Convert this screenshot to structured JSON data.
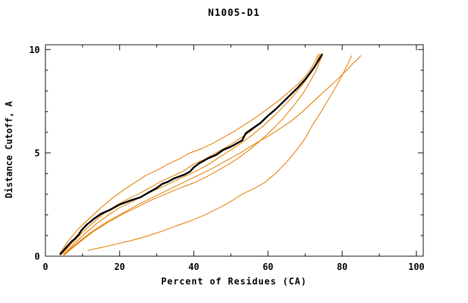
{
  "chart_data": {
    "type": "line",
    "title": "N1005-D1",
    "xlabel": "Percent of Residues (CA)",
    "ylabel": "Distance Cutoff, A",
    "xlim": [
      0,
      102
    ],
    "ylim": [
      0,
      10.23
    ],
    "grid": false,
    "legend": "none",
    "x_major_ticks": [
      0,
      20,
      40,
      60,
      80,
      100
    ],
    "x_minor_ticks": [
      10,
      30,
      50,
      70,
      90
    ],
    "y_major_ticks": [
      0,
      5,
      10
    ],
    "y_minor_ticks": [
      1,
      2,
      3,
      4,
      6,
      7,
      8,
      9
    ],
    "colors": {
      "accent": "#e8820a",
      "main": "#000000",
      "axis": "#000000"
    },
    "series": [
      {
        "name": "orange-1",
        "color": "#e8820a",
        "width": 1.2,
        "points": [
          [
            4,
            0.15
          ],
          [
            6,
            0.7
          ],
          [
            9,
            1.35
          ],
          [
            12,
            1.85
          ],
          [
            15,
            2.35
          ],
          [
            18,
            2.8
          ],
          [
            21,
            3.2
          ],
          [
            24,
            3.55
          ],
          [
            27,
            3.9
          ],
          [
            30,
            4.15
          ],
          [
            33,
            4.45
          ],
          [
            36,
            4.7
          ],
          [
            39,
            5.0
          ],
          [
            42,
            5.2
          ],
          [
            45,
            5.45
          ],
          [
            48,
            5.75
          ],
          [
            51,
            6.05
          ],
          [
            54,
            6.4
          ],
          [
            57,
            6.75
          ],
          [
            60,
            7.15
          ],
          [
            63,
            7.55
          ],
          [
            66,
            8.0
          ],
          [
            68.5,
            8.4
          ],
          [
            70.5,
            8.8
          ],
          [
            72,
            9.2
          ],
          [
            73,
            9.55
          ],
          [
            73.5,
            9.75
          ]
        ]
      },
      {
        "name": "orange-2",
        "color": "#e8820a",
        "width": 1.2,
        "points": [
          [
            4.5,
            0.1
          ],
          [
            7,
            0.6
          ],
          [
            10,
            1.15
          ],
          [
            13,
            1.65
          ],
          [
            16,
            2.1
          ],
          [
            19,
            2.45
          ],
          [
            22,
            2.75
          ],
          [
            25,
            3.0
          ],
          [
            28,
            3.3
          ],
          [
            31,
            3.6
          ],
          [
            34,
            3.85
          ],
          [
            37,
            4.1
          ],
          [
            40,
            4.45
          ],
          [
            43,
            4.7
          ],
          [
            46,
            5.0
          ],
          [
            49,
            5.3
          ],
          [
            52,
            5.65
          ],
          [
            55,
            6.0
          ],
          [
            58,
            6.45
          ],
          [
            61,
            6.95
          ],
          [
            64,
            7.45
          ],
          [
            67,
            7.95
          ],
          [
            69.5,
            8.45
          ],
          [
            71.5,
            8.9
          ],
          [
            73,
            9.35
          ],
          [
            74,
            9.8
          ]
        ]
      },
      {
        "name": "orange-3",
        "color": "#e8820a",
        "width": 1.2,
        "points": [
          [
            5,
            0.1
          ],
          [
            8,
            0.65
          ],
          [
            11,
            1.15
          ],
          [
            14,
            1.6
          ],
          [
            17,
            2.0
          ],
          [
            20,
            2.35
          ],
          [
            23,
            2.6
          ],
          [
            26,
            2.9
          ],
          [
            29,
            3.15
          ],
          [
            32,
            3.4
          ],
          [
            35,
            3.65
          ],
          [
            38,
            3.9
          ],
          [
            41,
            4.15
          ],
          [
            44,
            4.45
          ],
          [
            47,
            4.8
          ],
          [
            50,
            5.15
          ],
          [
            53,
            5.5
          ],
          [
            56,
            5.9
          ],
          [
            59,
            6.35
          ],
          [
            62,
            6.85
          ],
          [
            65,
            7.4
          ],
          [
            67.5,
            7.9
          ],
          [
            69.5,
            8.35
          ],
          [
            71.5,
            8.85
          ],
          [
            73,
            9.3
          ],
          [
            74.5,
            9.8
          ]
        ]
      },
      {
        "name": "orange-4",
        "color": "#e8820a",
        "width": 1.2,
        "points": [
          [
            5,
            0.05
          ],
          [
            9,
            0.65
          ],
          [
            13,
            1.2
          ],
          [
            17,
            1.65
          ],
          [
            21,
            2.05
          ],
          [
            25,
            2.4
          ],
          [
            29,
            2.75
          ],
          [
            33,
            3.05
          ],
          [
            37,
            3.35
          ],
          [
            40,
            3.55
          ],
          [
            43,
            3.8
          ],
          [
            46,
            4.1
          ],
          [
            49,
            4.4
          ],
          [
            52,
            4.75
          ],
          [
            55,
            5.15
          ],
          [
            58,
            5.6
          ],
          [
            61,
            6.1
          ],
          [
            64,
            6.65
          ],
          [
            67,
            7.3
          ],
          [
            69.5,
            7.9
          ],
          [
            71.5,
            8.5
          ],
          [
            73,
            9.0
          ],
          [
            74,
            9.45
          ],
          [
            74.8,
            9.8
          ]
        ]
      },
      {
        "name": "orange-5",
        "color": "#e8820a",
        "width": 1.2,
        "points": [
          [
            5,
            0.1
          ],
          [
            9,
            0.7
          ],
          [
            13,
            1.25
          ],
          [
            17,
            1.7
          ],
          [
            21,
            2.1
          ],
          [
            25,
            2.5
          ],
          [
            29,
            2.85
          ],
          [
            33,
            3.2
          ],
          [
            37,
            3.55
          ],
          [
            41,
            3.9
          ],
          [
            45,
            4.25
          ],
          [
            49,
            4.65
          ],
          [
            53,
            5.05
          ],
          [
            57,
            5.5
          ],
          [
            60,
            5.8
          ],
          [
            63,
            6.15
          ],
          [
            66,
            6.5
          ],
          [
            69,
            6.95
          ],
          [
            72,
            7.45
          ],
          [
            75,
            7.95
          ],
          [
            77.5,
            8.35
          ],
          [
            79.5,
            8.7
          ],
          [
            81.5,
            9.05
          ],
          [
            83,
            9.35
          ],
          [
            84.5,
            9.6
          ],
          [
            85,
            9.7
          ]
        ]
      },
      {
        "name": "orange-6-low",
        "color": "#e8820a",
        "width": 1.2,
        "points": [
          [
            11.5,
            0.28
          ],
          [
            15,
            0.42
          ],
          [
            19,
            0.58
          ],
          [
            23,
            0.75
          ],
          [
            27,
            0.95
          ],
          [
            31,
            1.18
          ],
          [
            35,
            1.45
          ],
          [
            39,
            1.7
          ],
          [
            43,
            2.0
          ],
          [
            47,
            2.35
          ],
          [
            50,
            2.65
          ],
          [
            53,
            3.0
          ],
          [
            56,
            3.25
          ],
          [
            59,
            3.55
          ],
          [
            62,
            4.0
          ],
          [
            65,
            4.55
          ],
          [
            68,
            5.2
          ],
          [
            70,
            5.7
          ],
          [
            72,
            6.35
          ],
          [
            74,
            6.9
          ],
          [
            76,
            7.5
          ],
          [
            78,
            8.1
          ],
          [
            80,
            8.75
          ],
          [
            81.5,
            9.3
          ],
          [
            82.5,
            9.7
          ]
        ]
      },
      {
        "name": "black-main",
        "color": "#000000",
        "width": 2.6,
        "points": [
          [
            4,
            0.1
          ],
          [
            5,
            0.3
          ],
          [
            6,
            0.5
          ],
          [
            7,
            0.7
          ],
          [
            8,
            0.85
          ],
          [
            9,
            1.05
          ],
          [
            9.7,
            1.25
          ],
          [
            11,
            1.5
          ],
          [
            13,
            1.8
          ],
          [
            15,
            2.05
          ],
          [
            17.5,
            2.25
          ],
          [
            20,
            2.5
          ],
          [
            23,
            2.7
          ],
          [
            25.6,
            2.85
          ],
          [
            28,
            3.1
          ],
          [
            30,
            3.3
          ],
          [
            31.5,
            3.5
          ],
          [
            33,
            3.6
          ],
          [
            34.5,
            3.75
          ],
          [
            36,
            3.85
          ],
          [
            37.5,
            3.95
          ],
          [
            39,
            4.1
          ],
          [
            40,
            4.3
          ],
          [
            41.5,
            4.5
          ],
          [
            42.5,
            4.6
          ],
          [
            44,
            4.75
          ],
          [
            46,
            4.9
          ],
          [
            48,
            5.15
          ],
          [
            50,
            5.3
          ],
          [
            52,
            5.5
          ],
          [
            53,
            5.6
          ],
          [
            54,
            5.95
          ],
          [
            56,
            6.2
          ],
          [
            58,
            6.45
          ],
          [
            60,
            6.8
          ],
          [
            62,
            7.1
          ],
          [
            64,
            7.45
          ],
          [
            66,
            7.8
          ],
          [
            68,
            8.15
          ],
          [
            70,
            8.55
          ],
          [
            71.5,
            8.9
          ],
          [
            72.5,
            9.15
          ],
          [
            73.5,
            9.45
          ],
          [
            74.5,
            9.75
          ]
        ]
      }
    ]
  }
}
